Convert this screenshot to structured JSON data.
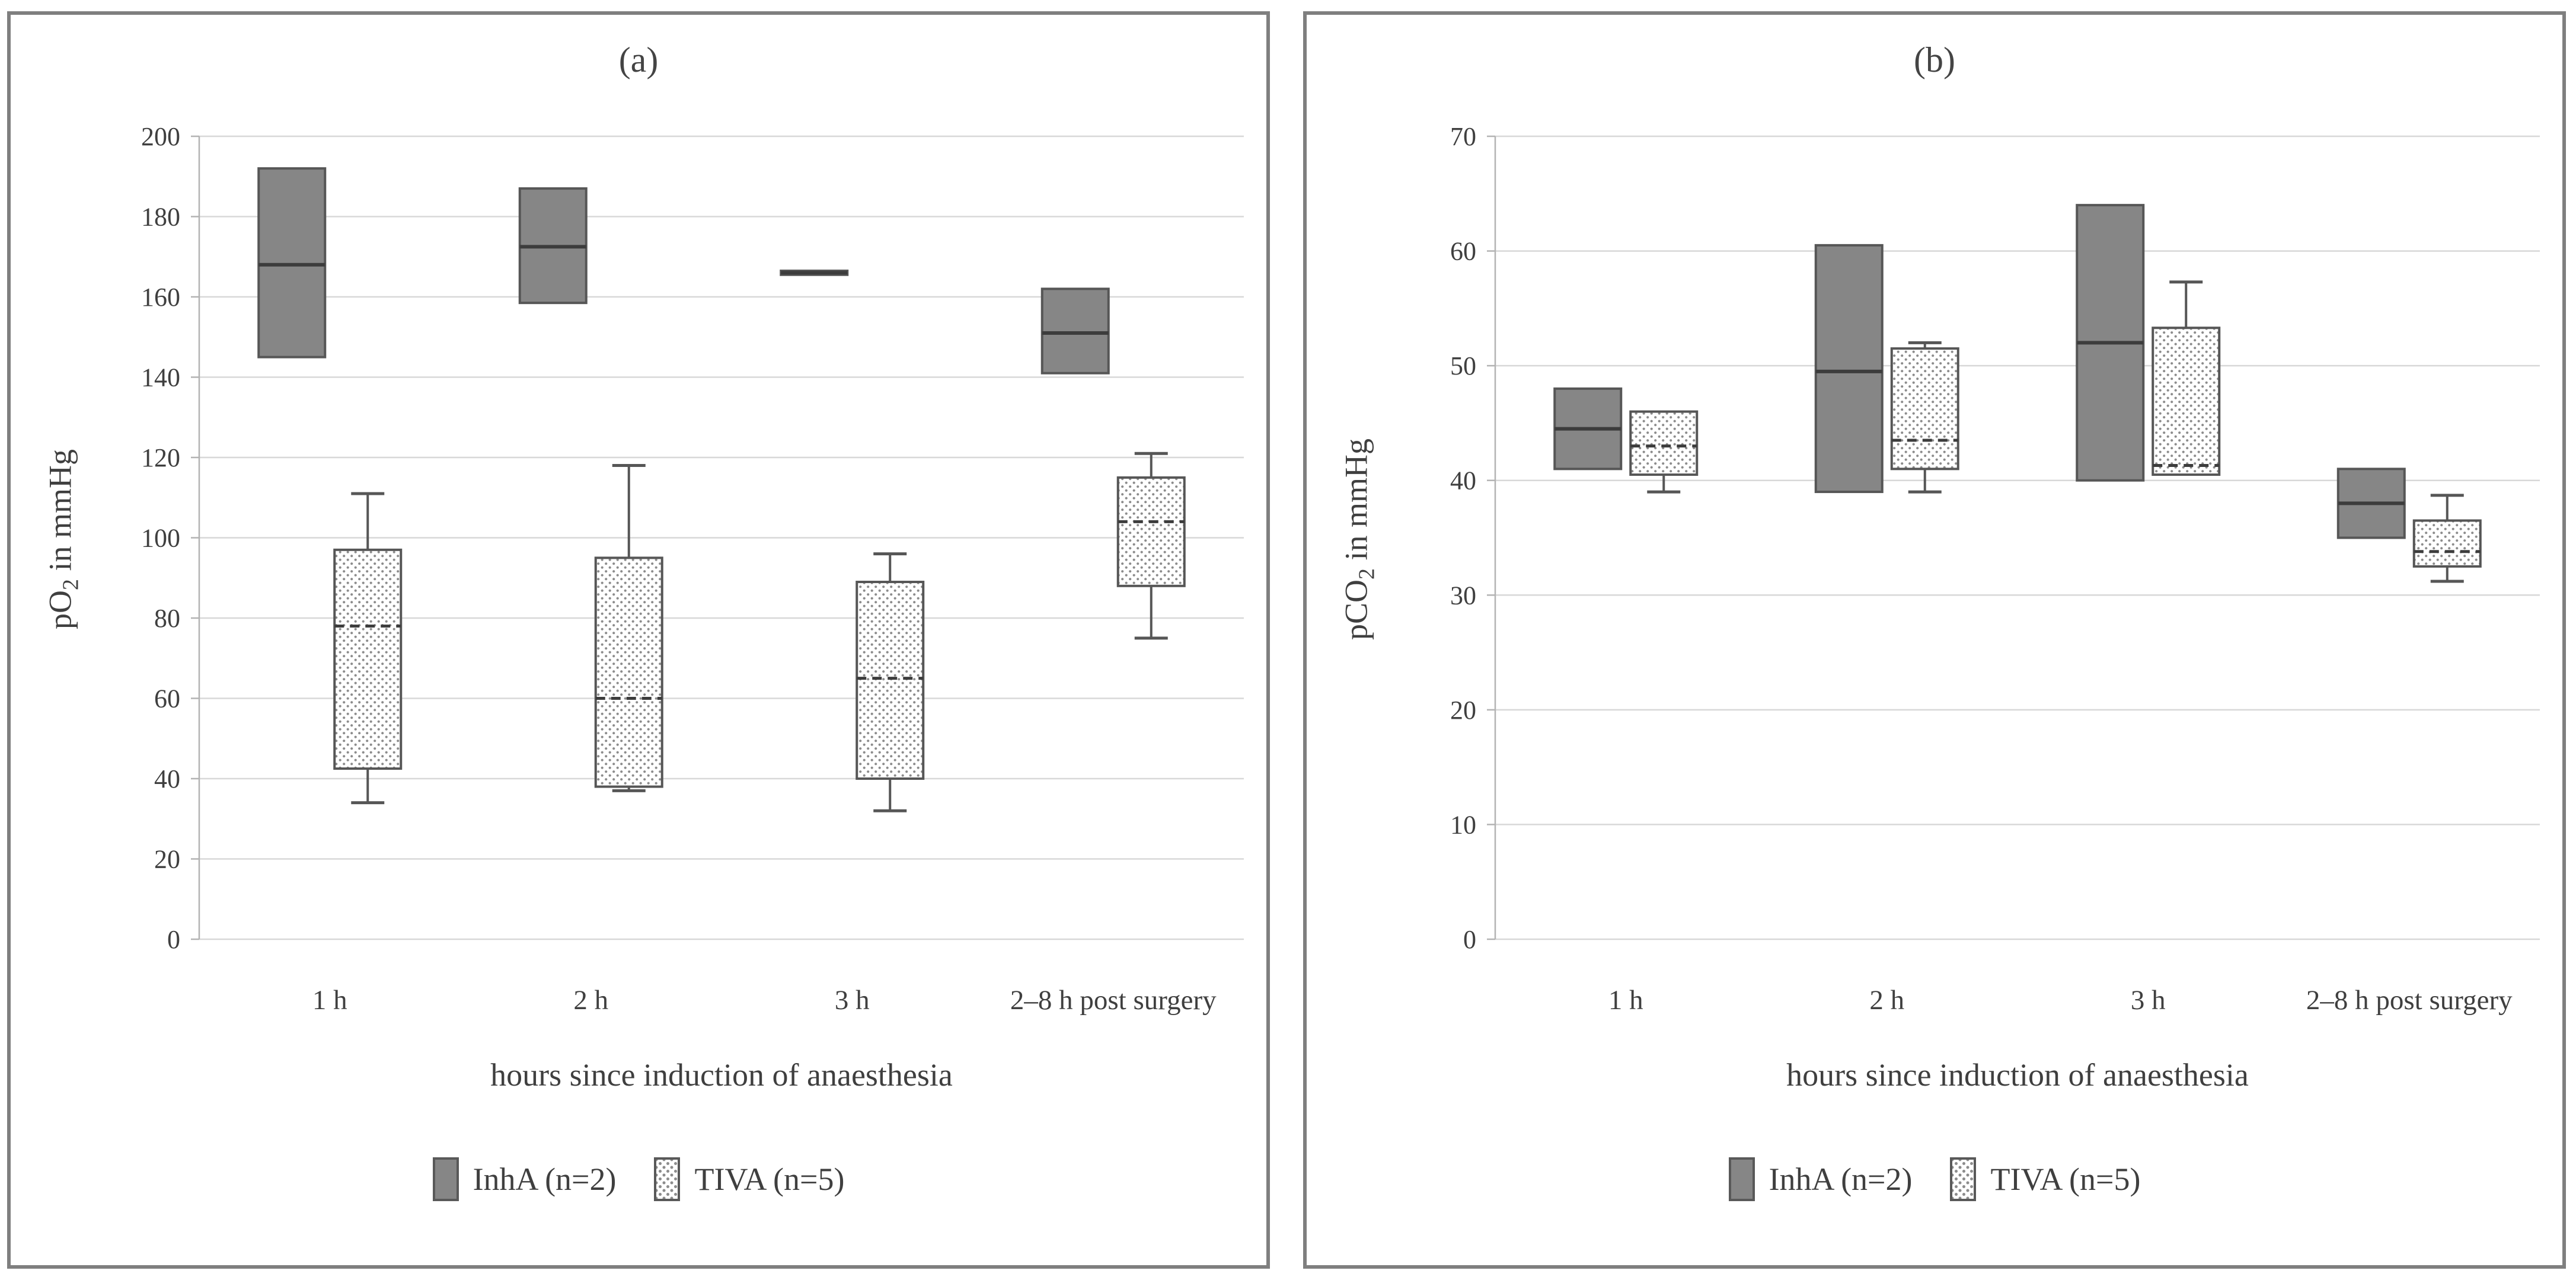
{
  "figure": {
    "panels": [
      {
        "title": "(a)",
        "ylabel": {
          "prefix": "pO",
          "sub": "2",
          "suffix": " in mmHg"
        },
        "xlabel": "hours since induction of anaesthesia",
        "legend": [
          {
            "label": "InhA (n=2)",
            "style": "solid"
          },
          {
            "label": "TIVA (n=5)",
            "style": "dotted"
          }
        ]
      },
      {
        "title": "(b)",
        "ylabel": {
          "prefix": "pCO",
          "sub": "2",
          "suffix": " in mmHg"
        },
        "xlabel": "hours since induction of anaesthesia",
        "legend": [
          {
            "label": "InhA (n=2)",
            "style": "solid"
          },
          {
            "label": "TIVA (n=5)",
            "style": "dotted"
          }
        ]
      }
    ],
    "colors": {
      "inha_fill": "#868686",
      "box_stroke": "#565656",
      "median": "#3c3c3c",
      "gridline": "#d8d8d8",
      "axis": "#b3b3b3",
      "text": "#3f3f3f",
      "panel_border": "#7f7f7f",
      "tiva_dot": "#8c8c8c"
    }
  },
  "chart_data": [
    {
      "type": "boxplot",
      "panel": "a",
      "title": "(a)",
      "ylabel": "pO2 in mmHg",
      "xlabel": "hours since induction of anaesthesia",
      "categories": [
        "1 h",
        "2 h",
        "3 h",
        "2–8 h post surgery"
      ],
      "ylim": [
        0,
        200
      ],
      "ytick_step": 20,
      "yticks": [
        0,
        20,
        40,
        60,
        80,
        100,
        120,
        140,
        160,
        180,
        200
      ],
      "grid": true,
      "legend_position": "bottom",
      "series": [
        {
          "name": "InhA (n=2)",
          "style": "solid",
          "boxes": [
            {
              "lo": null,
              "q1": 145,
              "med": 168,
              "q3": 192,
              "hi": null
            },
            {
              "lo": null,
              "q1": 158.5,
              "med": 172.5,
              "q3": 187,
              "hi": null
            },
            {
              "lo": null,
              "q1": 165.5,
              "med": 166,
              "q3": 166.5,
              "hi": null
            },
            {
              "lo": null,
              "q1": 141,
              "med": 151,
              "q3": 162,
              "hi": null
            }
          ]
        },
        {
          "name": "TIVA (n=5)",
          "style": "dotted",
          "boxes": [
            {
              "lo": 34,
              "q1": 42.5,
              "med": 78,
              "q3": 97,
              "hi": 111
            },
            {
              "lo": 37,
              "q1": 38,
              "med": 60,
              "q3": 95,
              "hi": 118
            },
            {
              "lo": 32,
              "q1": 40,
              "med": 65,
              "q3": 89,
              "hi": 96
            },
            {
              "lo": 75,
              "q1": 88,
              "med": 104,
              "q3": 115,
              "hi": 121
            }
          ]
        }
      ]
    },
    {
      "type": "boxplot",
      "panel": "b",
      "title": "(b)",
      "ylabel": "pCO2 in mmHg",
      "xlabel": "hours since induction of anaesthesia",
      "categories": [
        "1 h",
        "2 h",
        "3 h",
        "2–8 h post surgery"
      ],
      "ylim": [
        0,
        70
      ],
      "ytick_step": 10,
      "yticks": [
        0,
        10,
        20,
        30,
        40,
        50,
        60,
        70
      ],
      "grid": true,
      "legend_position": "bottom",
      "series": [
        {
          "name": "InhA (n=2)",
          "style": "solid",
          "boxes": [
            {
              "lo": null,
              "q1": 41,
              "med": 44.5,
              "q3": 48,
              "hi": null
            },
            {
              "lo": null,
              "q1": 39,
              "med": 49.5,
              "q3": 60.5,
              "hi": null
            },
            {
              "lo": null,
              "q1": 40,
              "med": 52,
              "q3": 64,
              "hi": null
            },
            {
              "lo": null,
              "q1": 35,
              "med": 38,
              "q3": 41,
              "hi": null
            }
          ]
        },
        {
          "name": "TIVA (n=5)",
          "style": "dotted",
          "boxes": [
            {
              "lo": 39,
              "q1": 40.5,
              "med": 43,
              "q3": 46,
              "hi": null
            },
            {
              "lo": 39,
              "q1": 41,
              "med": 43.5,
              "q3": 51.5,
              "hi": 52
            },
            {
              "lo": null,
              "q1": 40.5,
              "med": 41.3,
              "q3": 53.3,
              "hi": 57.3
            },
            {
              "lo": 31.2,
              "q1": 32.5,
              "med": 33.8,
              "q3": 36.5,
              "hi": 38.7
            }
          ]
        }
      ]
    }
  ]
}
